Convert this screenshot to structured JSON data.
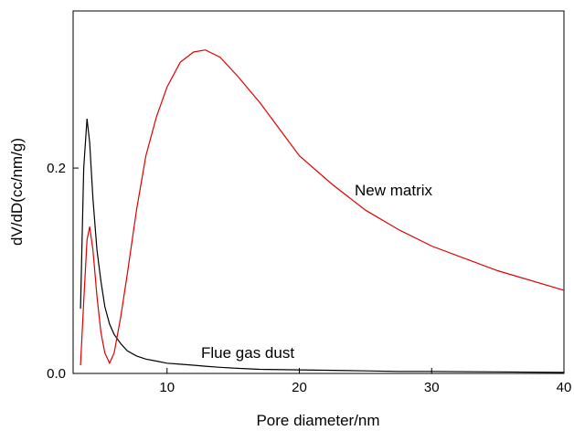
{
  "chart_data": {
    "type": "line",
    "x_label": "Pore diameter/nm",
    "y_label": "dV/dD(cc/nm/g)",
    "x": [
      3.46,
      3.7,
      3.95,
      4.15,
      4.4,
      4.7,
      5.0,
      5.3,
      5.66,
      6.0,
      6.5,
      7.0,
      7.7,
      8.4,
      9.2,
      10,
      11,
      12,
      12.9,
      14,
      15.3,
      17,
      20,
      22.5,
      25,
      27.5,
      30,
      35,
      40
    ],
    "series": [
      {
        "name": "Flue gas dust",
        "color": "#000000",
        "values": [
          0.063,
          0.2,
          0.248,
          0.225,
          0.17,
          0.12,
          0.09,
          0.065,
          0.048,
          0.038,
          0.029,
          0.022,
          0.017,
          0.014,
          0.012,
          0.01,
          0.009,
          0.008,
          0.007,
          0.006,
          0.005,
          0.004,
          0.0035,
          0.003,
          0.0025,
          0.002,
          0.002,
          0.0015,
          0.001
        ]
      },
      {
        "name": "New matrix",
        "color": "#e00000",
        "values": [
          0.008,
          0.07,
          0.13,
          0.143,
          0.12,
          0.075,
          0.04,
          0.02,
          0.01,
          0.02,
          0.055,
          0.097,
          0.16,
          0.212,
          0.25,
          0.279,
          0.303,
          0.313,
          0.315,
          0.308,
          0.29,
          0.264,
          0.212,
          0.184,
          0.159,
          0.14,
          0.124,
          0.1,
          0.081
        ]
      }
    ],
    "xlim": [
      2.9,
      40
    ],
    "xticks": [
      10,
      20,
      30,
      40
    ],
    "ylim": [
      0,
      0.353
    ],
    "yticks": [
      {
        "value": 0,
        "label": "0.0"
      },
      0.2
    ]
  }
}
